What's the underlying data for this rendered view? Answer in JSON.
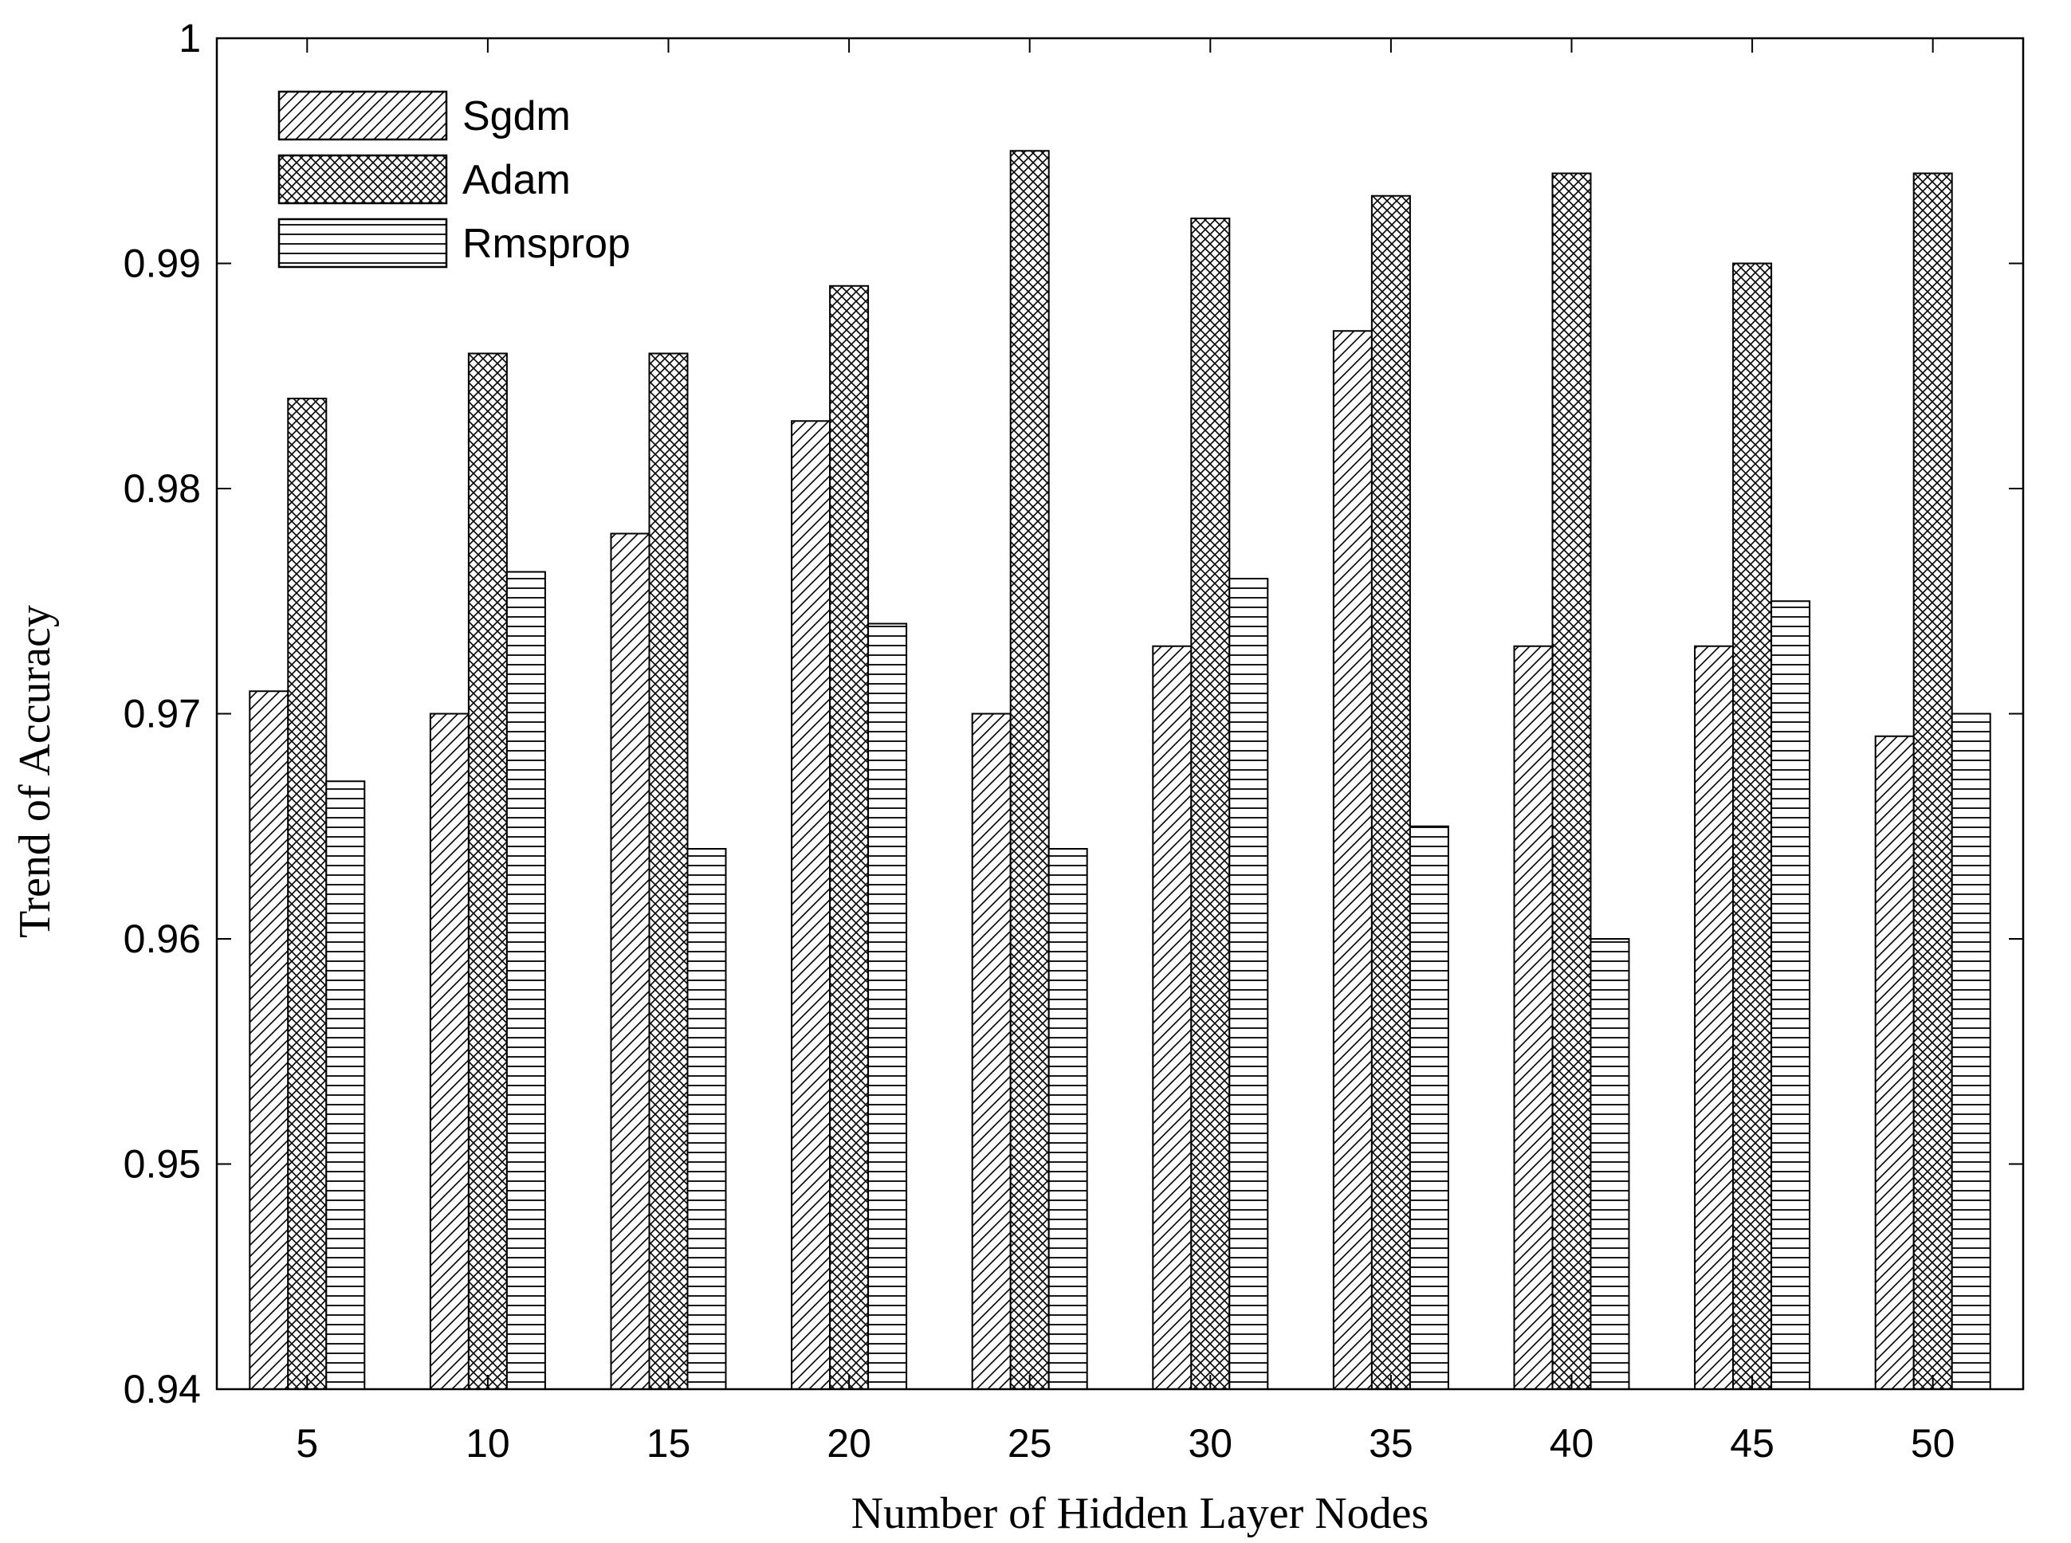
{
  "chart_data": {
    "type": "bar",
    "title": "",
    "xlabel": "Number of Hidden Layer Nodes",
    "ylabel": "Trend of Accuracy",
    "categories": [
      "5",
      "10",
      "15",
      "20",
      "25",
      "30",
      "35",
      "40",
      "45",
      "50"
    ],
    "ylim": [
      0.94,
      1.0
    ],
    "yticks": [
      0.94,
      0.95,
      0.96,
      0.97,
      0.98,
      0.99,
      1
    ],
    "ytick_labels": [
      "0.94",
      "0.95",
      "0.96",
      "0.97",
      "0.98",
      "0.99",
      "1"
    ],
    "grid": false,
    "legend_position": "top-left",
    "series": [
      {
        "name": "Sgdm",
        "pattern": "diagonal-hatch",
        "values": [
          0.971,
          0.97,
          0.978,
          0.983,
          0.97,
          0.973,
          0.987,
          0.973,
          0.973,
          0.969
        ]
      },
      {
        "name": "Adam",
        "pattern": "crosshatch",
        "values": [
          0.984,
          0.986,
          0.986,
          0.989,
          0.995,
          0.992,
          0.993,
          0.994,
          0.99,
          0.994
        ]
      },
      {
        "name": "Rmsprop",
        "pattern": "horizontal-lines",
        "values": [
          0.967,
          0.9763,
          0.964,
          0.974,
          0.964,
          0.976,
          0.965,
          0.96,
          0.975,
          0.97
        ]
      }
    ]
  }
}
